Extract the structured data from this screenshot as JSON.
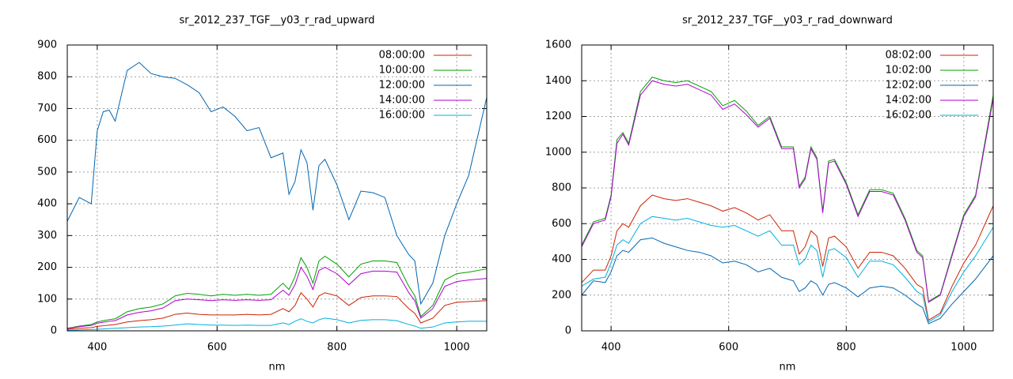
{
  "chart_data": [
    {
      "type": "line",
      "title": "sr_2012_237_TGF__y03_r_rad_upward",
      "xlabel": "nm",
      "xlim": [
        350,
        1050
      ],
      "xticks": [
        400,
        600,
        800,
        1000
      ],
      "ylim": [
        0,
        900
      ],
      "yticks": [
        0,
        100,
        200,
        300,
        400,
        500,
        600,
        700,
        800,
        900
      ],
      "grid": true,
      "legend": "top-right",
      "x": [
        350,
        370,
        390,
        400,
        410,
        420,
        430,
        450,
        470,
        490,
        510,
        530,
        550,
        570,
        590,
        610,
        630,
        650,
        670,
        690,
        710,
        720,
        730,
        740,
        750,
        760,
        770,
        780,
        800,
        820,
        840,
        860,
        880,
        900,
        920,
        930,
        940,
        960,
        980,
        1000,
        1020,
        1050
      ],
      "series": [
        {
          "name": "08:00:00",
          "color": "#cc2200",
          "values": [
            5,
            8,
            10,
            14,
            16,
            18,
            20,
            28,
            32,
            35,
            40,
            52,
            56,
            52,
            50,
            50,
            50,
            52,
            50,
            52,
            70,
            60,
            80,
            120,
            100,
            75,
            110,
            120,
            110,
            80,
            105,
            110,
            110,
            108,
            70,
            55,
            25,
            40,
            80,
            90,
            92,
            95
          ]
        },
        {
          "name": "10:00:00",
          "color": "#00a000",
          "values": [
            8,
            15,
            20,
            28,
            32,
            35,
            38,
            60,
            70,
            75,
            85,
            110,
            118,
            115,
            110,
            115,
            112,
            115,
            112,
            115,
            150,
            130,
            170,
            230,
            200,
            150,
            220,
            235,
            210,
            170,
            210,
            220,
            220,
            215,
            140,
            110,
            45,
            80,
            160,
            180,
            185,
            195
          ]
        },
        {
          "name": "12:00:00",
          "color": "#0066b3",
          "values": [
            345,
            420,
            400,
            630,
            690,
            695,
            660,
            820,
            845,
            810,
            800,
            795,
            775,
            750,
            690,
            705,
            675,
            630,
            640,
            545,
            560,
            430,
            470,
            570,
            530,
            380,
            520,
            540,
            460,
            350,
            440,
            435,
            420,
            300,
            240,
            220,
            85,
            150,
            300,
            400,
            490,
            735
          ]
        },
        {
          "name": "14:00:00",
          "color": "#b000d0",
          "values": [
            7,
            13,
            17,
            24,
            27,
            30,
            32,
            50,
            58,
            63,
            72,
            95,
            100,
            98,
            95,
            98,
            96,
            98,
            96,
            98,
            128,
            112,
            145,
            200,
            172,
            130,
            190,
            200,
            180,
            145,
            180,
            188,
            188,
            185,
            120,
            95,
            40,
            70,
            140,
            155,
            160,
            165
          ]
        },
        {
          "name": "16:00:00",
          "color": "#00b0e0",
          "values": [
            2,
            3,
            4,
            5,
            6,
            7,
            8,
            10,
            12,
            13,
            15,
            18,
            22,
            20,
            18,
            18,
            17,
            18,
            17,
            17,
            25,
            20,
            30,
            38,
            30,
            25,
            35,
            40,
            35,
            25,
            33,
            35,
            35,
            32,
            20,
            15,
            8,
            12,
            25,
            28,
            30,
            30
          ]
        }
      ]
    },
    {
      "type": "line",
      "title": "sr_2012_237_TGF__y03_r_rad_downward",
      "xlabel": "nm",
      "xlim": [
        350,
        1050
      ],
      "xticks": [
        400,
        600,
        800,
        1000
      ],
      "ylim": [
        0,
        1600
      ],
      "yticks": [
        0,
        200,
        400,
        600,
        800,
        1000,
        1200,
        1400,
        1600
      ],
      "grid": true,
      "legend": "top-right",
      "x": [
        350,
        370,
        390,
        400,
        410,
        420,
        430,
        450,
        470,
        490,
        510,
        530,
        550,
        570,
        590,
        610,
        630,
        650,
        670,
        690,
        710,
        720,
        730,
        740,
        750,
        760,
        770,
        780,
        800,
        820,
        840,
        860,
        880,
        900,
        920,
        930,
        940,
        960,
        980,
        1000,
        1020,
        1050
      ],
      "series": [
        {
          "name": "08:02:00",
          "color": "#cc2200",
          "values": [
            270,
            340,
            340,
            420,
            560,
            600,
            580,
            700,
            760,
            740,
            730,
            740,
            720,
            700,
            670,
            690,
            660,
            620,
            650,
            560,
            560,
            430,
            470,
            560,
            530,
            360,
            520,
            530,
            470,
            350,
            440,
            440,
            420,
            350,
            260,
            240,
            60,
            100,
            250,
            380,
            480,
            700
          ]
        },
        {
          "name": "10:02:00",
          "color": "#00a000",
          "values": [
            480,
            610,
            630,
            760,
            1070,
            1110,
            1050,
            1340,
            1420,
            1400,
            1390,
            1400,
            1370,
            1340,
            1260,
            1290,
            1230,
            1150,
            1200,
            1030,
            1030,
            810,
            860,
            1030,
            970,
            670,
            950,
            960,
            830,
            650,
            790,
            790,
            770,
            630,
            450,
            420,
            165,
            205,
            430,
            650,
            760,
            1320
          ]
        },
        {
          "name": "12:02:00",
          "color": "#0066b3",
          "values": [
            200,
            280,
            270,
            330,
            420,
            450,
            440,
            510,
            520,
            490,
            470,
            450,
            440,
            420,
            380,
            390,
            370,
            330,
            350,
            300,
            280,
            220,
            240,
            280,
            260,
            200,
            260,
            270,
            240,
            190,
            240,
            250,
            240,
            200,
            150,
            130,
            40,
            70,
            150,
            220,
            290,
            420
          ]
        },
        {
          "name": "14:02:00",
          "color": "#b000d0",
          "values": [
            470,
            600,
            620,
            750,
            1050,
            1100,
            1040,
            1320,
            1400,
            1380,
            1370,
            1380,
            1350,
            1320,
            1240,
            1270,
            1210,
            1140,
            1190,
            1020,
            1020,
            800,
            850,
            1020,
            960,
            660,
            940,
            950,
            820,
            640,
            780,
            780,
            760,
            620,
            440,
            410,
            160,
            200,
            420,
            640,
            750,
            1300
          ]
        },
        {
          "name": "16:02:00",
          "color": "#00b0e0",
          "values": [
            250,
            290,
            300,
            380,
            480,
            510,
            490,
            600,
            640,
            630,
            620,
            630,
            610,
            590,
            580,
            590,
            560,
            530,
            560,
            480,
            480,
            370,
            400,
            480,
            450,
            300,
            450,
            460,
            410,
            300,
            390,
            390,
            370,
            300,
            220,
            200,
            50,
            90,
            220,
            330,
            420,
            580
          ]
        }
      ]
    }
  ]
}
